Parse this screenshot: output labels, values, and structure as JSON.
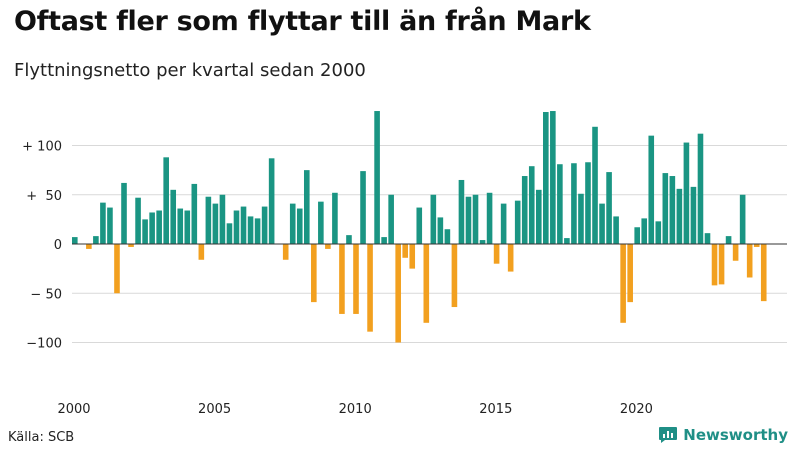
{
  "colors": {
    "positive": "#1a9583",
    "negative": "#f2a01f",
    "grid": "#d9d9d9",
    "baseline": "#333333",
    "brand": "#1f8f86"
  },
  "footer": {
    "source": "Källa: SCB",
    "brand_name": "Newsworthy",
    "brand_icon": "newsworthy-logo-icon"
  },
  "chart_data": {
    "type": "bar",
    "title": "Oftast fler som flyttar till än från Mark",
    "subtitle": "Flyttningsnetto per kvartal sedan 2000",
    "xlabel": "",
    "ylabel": "",
    "ylim": [
      -120,
      140
    ],
    "grid": true,
    "y_ticks": [
      100,
      50,
      0,
      -50,
      -100
    ],
    "y_tick_labels": [
      "+ 100",
      "+  50",
      "0",
      "− 50",
      "−100"
    ],
    "x_tick_years": [
      2000,
      2005,
      2010,
      2015,
      2020
    ],
    "x_tick_labels": [
      "2000",
      "2005",
      "2010",
      "2015",
      "2020"
    ],
    "start_year": 2000,
    "periods_per_year": 4,
    "values": [
      7,
      0,
      -5,
      8,
      42,
      37,
      -50,
      62,
      -3,
      47,
      25,
      32,
      34,
      88,
      55,
      36,
      34,
      61,
      -16,
      48,
      41,
      50,
      21,
      34,
      38,
      28,
      26,
      38,
      87,
      0,
      -16,
      41,
      36,
      75,
      -59,
      43,
      -5,
      52,
      -71,
      9,
      -71,
      74,
      -89,
      135,
      7,
      50,
      -100,
      -14,
      -25,
      37,
      -80,
      50,
      27,
      15,
      -64,
      65,
      48,
      50,
      4,
      52,
      -20,
      41,
      -28,
      44,
      69,
      79,
      55,
      134,
      135,
      81,
      6,
      82,
      51,
      83,
      119,
      41,
      73,
      28,
      -80,
      -59,
      17,
      26,
      110,
      23,
      72,
      69,
      56,
      103,
      58,
      112,
      11,
      -42,
      -41,
      8,
      -17,
      50,
      -34,
      -3,
      -58
    ]
  }
}
